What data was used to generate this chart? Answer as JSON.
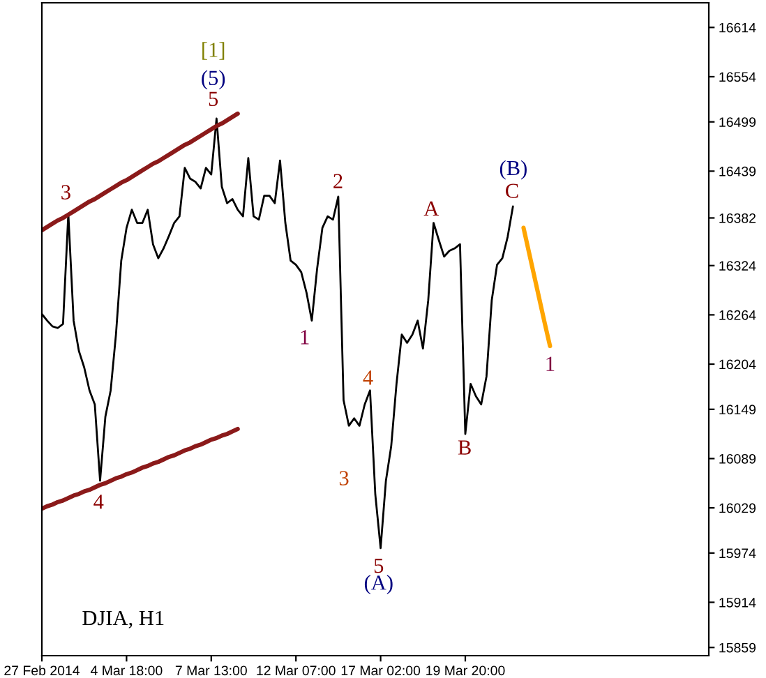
{
  "chart_data": {
    "type": "line",
    "categories": [
      "27 Feb 2014",
      null,
      null,
      null,
      null,
      null,
      null,
      null,
      null,
      null,
      null,
      null,
      null,
      null,
      null,
      null,
      "4 Mar 18:00",
      null,
      null,
      null,
      null,
      null,
      null,
      null,
      null,
      null,
      null,
      null,
      null,
      null,
      null,
      null,
      "7 Mar 13:00",
      null,
      null,
      null,
      null,
      null,
      null,
      null,
      null,
      null,
      null,
      null,
      null,
      null,
      null,
      null,
      "12 Mar 07:00",
      null,
      null,
      null,
      null,
      null,
      null,
      null,
      null,
      null,
      null,
      null,
      null,
      null,
      null,
      null,
      "17 Mar 02:00",
      null,
      null,
      null,
      null,
      null,
      null,
      null,
      null,
      null,
      null,
      null,
      null,
      null,
      null,
      null,
      "19 Mar 20:00",
      null,
      null,
      null,
      null,
      null,
      null,
      null,
      null,
      null,
      null,
      null,
      null,
      null,
      null,
      null,
      null,
      null,
      null,
      null,
      null,
      null,
      null,
      null,
      null,
      null,
      null,
      null,
      null,
      null,
      null,
      null,
      null,
      null,
      null,
      null,
      null,
      null,
      null,
      null,
      null,
      null,
      null,
      null,
      null,
      null,
      null
    ],
    "ylim": [
      15849,
      16644
    ],
    "yticks": [
      15859,
      15914,
      15974,
      16029,
      16089,
      16149,
      16204,
      16264,
      16324,
      16382,
      16439,
      16499,
      16554,
      16614
    ],
    "series": [
      {
        "color": "#000000",
        "values": [
          16265,
          16257,
          16250,
          16248,
          16253,
          16387,
          16257,
          16220,
          16200,
          16172,
          16155,
          16062,
          16140,
          16172,
          16240,
          16330,
          16370,
          16392,
          16376,
          16376,
          16392,
          16350,
          16333,
          16345,
          16360,
          16376,
          16384,
          16443,
          16430,
          16426,
          16418,
          16443,
          16435,
          16503,
          16420,
          16400,
          16405,
          16392,
          16384,
          16455,
          16384,
          16380,
          16409,
          16409,
          16400,
          16452,
          16376,
          16330,
          16325,
          16316,
          16291,
          16257,
          16320,
          16370,
          16384,
          16380,
          16408,
          16160,
          16129,
          16138,
          16129,
          16155,
          16172,
          16045,
          15980,
          16062,
          16104,
          16180,
          16240,
          16230,
          16240,
          16257,
          16223,
          16282,
          16376,
          16355,
          16335,
          16342,
          16345,
          16350,
          16119,
          16180,
          16165,
          16155,
          16189,
          16282,
          16325,
          16333,
          16359,
          16396,
          null,
          null,
          null,
          null,
          null,
          null,
          null,
          null,
          null,
          null,
          null,
          null,
          null,
          null,
          null,
          null,
          null,
          null,
          null,
          null,
          null,
          null,
          null,
          null,
          null,
          null,
          null,
          null,
          null,
          null,
          null,
          null,
          null,
          null,
          null,
          null,
          null
        ]
      },
      {
        "type": "line",
        "color": "#8b1a1a",
        "values": [
          16367,
          16371,
          16375,
          16379,
          16382,
          16386,
          16390,
          16394,
          16398,
          16402,
          16405,
          16409,
          16413,
          16417,
          16421,
          16425,
          16428,
          16432,
          16436,
          16440,
          16444,
          16448,
          16451,
          16455,
          16459,
          16463,
          16467,
          16471,
          16474,
          16478,
          16482,
          16486,
          16490,
          16494,
          16497,
          16501,
          16505,
          16509,
          null,
          null,
          null,
          null,
          null,
          null,
          null,
          null,
          null,
          null,
          null,
          null,
          null,
          null,
          null,
          null,
          null,
          null,
          null,
          null,
          null,
          null,
          null,
          null,
          null,
          null,
          null,
          null,
          null,
          null,
          null,
          null,
          null,
          null,
          null,
          null,
          null,
          null,
          null,
          null,
          null,
          null,
          null,
          null,
          null,
          null,
          null,
          null,
          null,
          null,
          null,
          null,
          null,
          null,
          null,
          null,
          null,
          null,
          null,
          null,
          null,
          null,
          null,
          null,
          null,
          null,
          null,
          null,
          null,
          null,
          null,
          null,
          null,
          null,
          null,
          null,
          null,
          null,
          null,
          null,
          null,
          null,
          null,
          null,
          null,
          null,
          null,
          null,
          null
        ]
      },
      {
        "type": "line",
        "color": "#8b1a1a",
        "values": [
          16028,
          16031,
          16033,
          16036,
          16038,
          16041,
          16044,
          16046,
          16049,
          16051,
          16054,
          16057,
          16059,
          16062,
          16065,
          16067,
          16070,
          16072,
          16075,
          16078,
          16080,
          16083,
          16085,
          16088,
          16091,
          16093,
          16096,
          16099,
          16101,
          16104,
          16106,
          16109,
          16112,
          16114,
          16117,
          16119,
          16122,
          16125,
          null,
          null,
          null,
          null,
          null,
          null,
          null,
          null,
          null,
          null,
          null,
          null,
          null,
          null,
          null,
          null,
          null,
          null,
          null,
          null,
          null,
          null,
          null,
          null,
          null,
          null,
          null,
          null,
          null,
          null,
          null,
          null,
          null,
          null,
          null,
          null,
          null,
          null,
          null,
          null,
          null,
          null,
          null,
          null,
          null,
          null,
          null,
          null,
          null,
          null,
          null,
          null,
          null,
          null,
          null,
          null,
          null,
          null,
          null,
          null,
          null,
          null,
          null,
          null,
          null,
          null,
          null,
          null,
          null,
          null,
          null,
          null,
          null,
          null,
          null,
          null,
          null,
          null,
          null,
          null,
          null,
          null,
          null,
          null,
          null,
          null,
          null,
          null,
          null
        ]
      },
      {
        "type": "line",
        "color": "#ffa500",
        "values": [
          null,
          null,
          null,
          null,
          null,
          null,
          null,
          null,
          null,
          null,
          null,
          null,
          null,
          null,
          null,
          null,
          null,
          null,
          null,
          null,
          null,
          null,
          null,
          null,
          null,
          null,
          null,
          null,
          null,
          null,
          null,
          null,
          null,
          null,
          null,
          null,
          null,
          null,
          null,
          null,
          null,
          null,
          null,
          null,
          null,
          null,
          null,
          null,
          null,
          null,
          null,
          null,
          null,
          null,
          null,
          null,
          null,
          null,
          null,
          null,
          null,
          null,
          null,
          null,
          null,
          null,
          null,
          null,
          null,
          null,
          null,
          null,
          null,
          null,
          null,
          null,
          null,
          null,
          null,
          null,
          null,
          null,
          null,
          null,
          null,
          null,
          null,
          null,
          null,
          null,
          null,
          16370,
          16341,
          16312,
          16283,
          16254,
          16226,
          null,
          null,
          null,
          null,
          null,
          null,
          null,
          null,
          null,
          null,
          null,
          null,
          null,
          null,
          null,
          null,
          null,
          null,
          null,
          null,
          null,
          null,
          null,
          null,
          null,
          null,
          null,
          null,
          null,
          null
        ]
      }
    ],
    "annotations": [
      "[1]",
      "(5)",
      "5",
      "3",
      "4",
      "2",
      "1",
      "4",
      "3",
      "5",
      "(A)",
      "A",
      "B",
      "C",
      "(B)",
      "1",
      "DJIA, H1"
    ]
  }
}
